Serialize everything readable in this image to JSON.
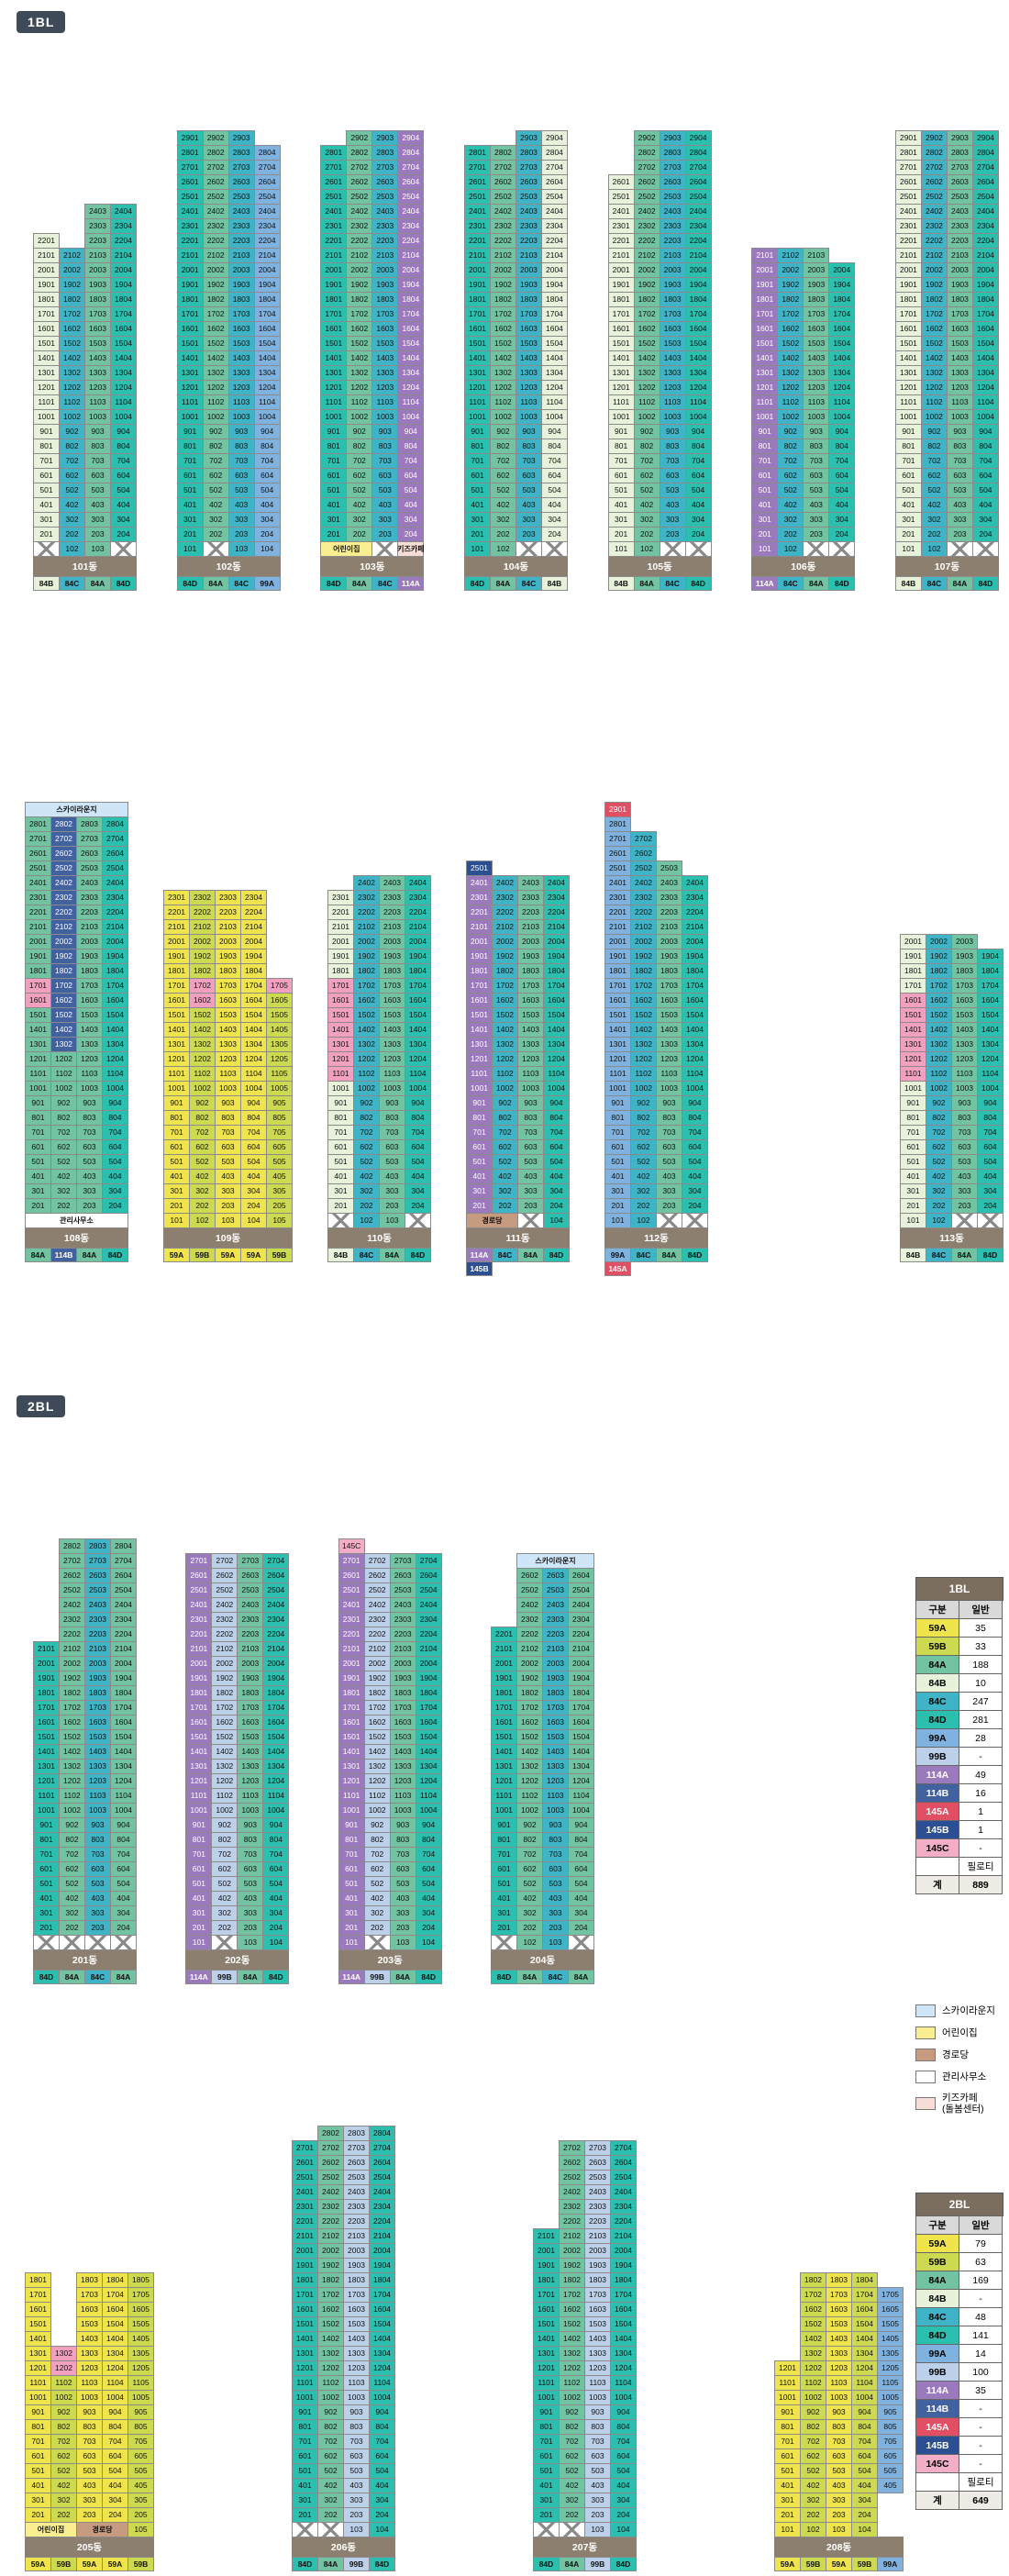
{
  "badges": {
    "bl1": "1BL",
    "bl2": "2BL"
  },
  "palette": {
    "59A": "#f0e44c",
    "59B": "#cdd94e",
    "84A": "#72c3a2",
    "84B": "#e8f1da",
    "84C": "#3fb4c6",
    "84D": "#2abfae",
    "99A": "#7fb2de",
    "99B": "#bcd0ea",
    "114A": "#9b79bd",
    "114B": "#41619f",
    "145A": "#e04f63",
    "145B": "#2c4f94",
    "145C": "#f2aec6",
    "HL": "#f2a0c0",
    "skylounge": "#cfe6f8",
    "daycare": "#f9ef90",
    "senior": "#c79b80",
    "office": "#ffffff",
    "kidscafe": "#f6ded6"
  },
  "whiteText": [
    "114A",
    "114B",
    "145A",
    "145B"
  ],
  "rows": {
    "row1": [
      "b101",
      "b102",
      "b103",
      "b104",
      "b105",
      "b106",
      "b107"
    ],
    "row2": [
      "b108",
      "b109",
      "b110",
      "b111",
      "b112",
      "b113"
    ],
    "row3": [
      "b201",
      "b202",
      "b203",
      "b204"
    ],
    "row4": [
      "b205",
      "b206",
      "b207",
      "b208"
    ]
  },
  "buildings": {
    "b101": {
      "name": "101동",
      "cols": [
        {
          "t": 22,
          "ty": "84B",
          "g": "x"
        },
        {
          "t": 21,
          "ty": "84C",
          "g": "u"
        },
        {
          "t": 24,
          "ty": "84A",
          "g": "u"
        },
        {
          "t": 24,
          "ty": "84D",
          "g": "x"
        }
      ]
    },
    "b102": {
      "name": "102동",
      "cols": [
        {
          "t": 29,
          "ty": "84D",
          "g": "u"
        },
        {
          "t": 29,
          "ty": "84A",
          "g": "x"
        },
        {
          "t": 29,
          "ty": "84C",
          "g": "u"
        },
        {
          "t": 28,
          "ty": "99A",
          "g": "u"
        }
      ]
    },
    "b103": {
      "name": "103동",
      "cols": [
        {
          "t": 28,
          "ty": "84D",
          "g": "-"
        },
        {
          "t": 29,
          "ty": "84A",
          "g": "-"
        },
        {
          "t": 29,
          "ty": "84C",
          "g": "x"
        },
        {
          "t": 29,
          "ty": "114A",
          "g": "-"
        }
      ],
      "gspans": [
        {
          "a": 1,
          "b": 2,
          "label": "어린이집",
          "fill": "daycare"
        },
        {
          "a": 4,
          "b": 4,
          "label": "키즈카페",
          "fill": "kidscafe"
        }
      ]
    },
    "b104": {
      "name": "104동",
      "cols": [
        {
          "t": 28,
          "ty": "84D",
          "g": "u"
        },
        {
          "t": 28,
          "ty": "84A",
          "g": "u"
        },
        {
          "t": 29,
          "ty": "84C",
          "g": "x"
        },
        {
          "t": 29,
          "ty": "84B",
          "g": "x"
        }
      ]
    },
    "b105": {
      "name": "105동",
      "cols": [
        {
          "t": 26,
          "ty": "84B",
          "g": "u"
        },
        {
          "t": 29,
          "ty": "84A",
          "g": "u"
        },
        {
          "t": 29,
          "ty": "84C",
          "g": "x"
        },
        {
          "t": 29,
          "ty": "84D",
          "g": "x"
        }
      ]
    },
    "b106": {
      "name": "106동",
      "cols": [
        {
          "t": 21,
          "ty": "114A",
          "g": "u"
        },
        {
          "t": 21,
          "ty": "84C",
          "g": "u"
        },
        {
          "t": 21,
          "ty": "84A",
          "g": "x"
        },
        {
          "t": 20,
          "ty": "84D",
          "g": "x"
        }
      ]
    },
    "b107": {
      "name": "107동",
      "cols": [
        {
          "t": 29,
          "ty": "84B",
          "g": "u"
        },
        {
          "t": 29,
          "ty": "84C",
          "g": "u"
        },
        {
          "t": 29,
          "ty": "84A",
          "g": "x"
        },
        {
          "t": 29,
          "ty": "84D",
          "g": "x"
        }
      ]
    },
    "b108": {
      "name": "108동",
      "header": {
        "a": 1,
        "b": 4,
        "label": "스카이라운지",
        "fill": "skylounge"
      },
      "cols": [
        {
          "t": 28,
          "ty": "84A",
          "g": "-"
        },
        {
          "t": 28,
          "ty": "114B",
          "g": "-"
        },
        {
          "t": 28,
          "ty": "84A",
          "g": "-"
        },
        {
          "t": 28,
          "ty": "84D",
          "g": "-"
        }
      ],
      "segs": {
        "2": [
          {
            "a": 2,
            "b": 12,
            "ty": "84A"
          },
          {
            "a": 13,
            "b": 28,
            "ty": "114B"
          }
        ]
      },
      "hl": {
        "1": [
          16,
          17
        ]
      },
      "gspans": [
        {
          "a": 1,
          "b": 4,
          "label": "관리사무소",
          "fill": "office"
        }
      ]
    },
    "b109": {
      "name": "109동",
      "cols": [
        {
          "t": 23,
          "ty": "59A",
          "g": "u"
        },
        {
          "t": 23,
          "ty": "59B",
          "g": "u"
        },
        {
          "t": 23,
          "ty": "59A",
          "g": "u"
        },
        {
          "t": 23,
          "ty": "59A",
          "g": "u"
        },
        {
          "t": 17,
          "ty": "59B",
          "g": "u"
        }
      ],
      "hl": {
        "2": [
          16,
          17
        ],
        "5": [
          17
        ]
      }
    },
    "b110": {
      "name": "110동",
      "cols": [
        {
          "t": 23,
          "ty": "84B",
          "g": "x"
        },
        {
          "t": 24,
          "ty": "84C",
          "g": "u"
        },
        {
          "t": 24,
          "ty": "84A",
          "g": "u"
        },
        {
          "t": 24,
          "ty": "84D",
          "g": "x"
        }
      ],
      "hl": {
        "1": [
          11,
          12,
          13,
          14,
          15,
          16,
          17
        ]
      }
    },
    "b111": {
      "name": "111동",
      "cols": [
        {
          "t": 25,
          "ty": "114A",
          "g": "-"
        },
        {
          "t": 24,
          "ty": "84C",
          "g": "-"
        },
        {
          "t": 24,
          "ty": "84A",
          "g": "x"
        },
        {
          "t": 24,
          "ty": "84D",
          "g": "u"
        }
      ],
      "cells": [
        {
          "c": 1,
          "f": 25,
          "fill": "145B"
        }
      ],
      "gspans": [
        {
          "a": 1,
          "b": 2,
          "label": "경로당",
          "fill": "senior"
        }
      ],
      "sub": [
        "145B",
        "",
        "",
        ""
      ]
    },
    "b112": {
      "name": "112동",
      "cols": [
        {
          "t": 29,
          "ty": "99A",
          "g": "u"
        },
        {
          "t": 27,
          "ty": "84C",
          "g": "u"
        },
        {
          "t": 25,
          "ty": "84A",
          "g": "x"
        },
        {
          "t": 24,
          "ty": "84D",
          "g": "x"
        }
      ],
      "cells": [
        {
          "c": 1,
          "f": 29,
          "fill": "145A"
        }
      ],
      "sub": [
        "145A",
        "",
        "",
        ""
      ]
    },
    "b113": {
      "name": "113동",
      "cols": [
        {
          "t": 20,
          "ty": "84B",
          "g": "u"
        },
        {
          "t": 20,
          "ty": "84C",
          "g": "u"
        },
        {
          "t": 20,
          "ty": "84A",
          "g": "x"
        },
        {
          "t": 19,
          "ty": "84D",
          "g": "x"
        }
      ],
      "hl": {
        "1": [
          11,
          12,
          13,
          14,
          15,
          16
        ]
      }
    },
    "b201": {
      "name": "201동",
      "cols": [
        {
          "t": 21,
          "ty": "84D",
          "g": "x"
        },
        {
          "t": 28,
          "ty": "84A",
          "g": "x"
        },
        {
          "t": 28,
          "ty": "84C",
          "g": "x"
        },
        {
          "t": 28,
          "ty": "84A",
          "g": "x"
        }
      ]
    },
    "b202": {
      "name": "202동",
      "cols": [
        {
          "t": 27,
          "ty": "114A",
          "g": "u"
        },
        {
          "t": 27,
          "ty": "99B",
          "g": "x"
        },
        {
          "t": 27,
          "ty": "84A",
          "g": "u"
        },
        {
          "t": 27,
          "ty": "84D",
          "g": "u"
        }
      ]
    },
    "b203": {
      "name": "203동",
      "cols": [
        {
          "t": 28,
          "ty": "114A",
          "g": "u"
        },
        {
          "t": 27,
          "ty": "99B",
          "g": "x"
        },
        {
          "t": 27,
          "ty": "84A",
          "g": "u"
        },
        {
          "t": 27,
          "ty": "84D",
          "g": "u"
        }
      ],
      "cells": [
        {
          "c": 1,
          "f": 28,
          "fill": "145C",
          "text": "145C"
        }
      ]
    },
    "b204": {
      "name": "204동",
      "header": {
        "a": 2,
        "b": 4,
        "label": "스카이라운지",
        "fill": "skylounge"
      },
      "cols": [
        {
          "t": 22,
          "ty": "84D",
          "g": "x"
        },
        {
          "t": 26,
          "ty": "84A",
          "g": "u"
        },
        {
          "t": 26,
          "ty": "84C",
          "g": "u"
        },
        {
          "t": 26,
          "ty": "84A",
          "g": "x"
        }
      ]
    },
    "b205": {
      "name": "205동",
      "cols": [
        {
          "t": 18,
          "ty": "59A",
          "g": "-"
        },
        {
          "t": 13,
          "ty": "59B",
          "g": "-"
        },
        {
          "t": 18,
          "ty": "59A",
          "g": "-"
        },
        {
          "t": 18,
          "ty": "59A",
          "g": "-"
        },
        {
          "t": 18,
          "ty": "59B",
          "g": "u"
        }
      ],
      "gspans": [
        {
          "a": 1,
          "b": 2,
          "label": "어린이집",
          "fill": "daycare"
        },
        {
          "a": 3,
          "b": 4,
          "label": "경로당",
          "fill": "senior"
        }
      ],
      "hl": {
        "2": [
          12,
          13
        ]
      }
    },
    "b206": {
      "name": "206동",
      "cols": [
        {
          "t": 27,
          "ty": "84D",
          "g": "x"
        },
        {
          "t": 28,
          "ty": "84A",
          "g": "x"
        },
        {
          "t": 28,
          "ty": "99B",
          "g": "u"
        },
        {
          "t": 28,
          "ty": "84D",
          "g": "u"
        }
      ]
    },
    "b207": {
      "name": "207동",
      "cols": [
        {
          "t": 21,
          "ty": "84D",
          "g": "x"
        },
        {
          "t": 27,
          "ty": "84A",
          "g": "x"
        },
        {
          "t": 27,
          "ty": "99B",
          "g": "u"
        },
        {
          "t": 27,
          "ty": "84D",
          "g": "u"
        }
      ]
    },
    "b208": {
      "name": "208동",
      "cols": [
        {
          "t": 12,
          "ty": "59A",
          "g": "u"
        },
        {
          "t": 18,
          "ty": "59B",
          "g": "u"
        },
        {
          "t": 18,
          "ty": "59A",
          "g": "u"
        },
        {
          "t": 18,
          "ty": "59B",
          "g": "u"
        },
        {
          "t": 17,
          "bo": 4,
          "ty": "99A",
          "g": "-"
        }
      ]
    }
  },
  "tableColumns": [
    "구분",
    "일반"
  ],
  "tables": [
    {
      "id": "bl1",
      "title": "1BL",
      "rows": [
        [
          "59A",
          "35"
        ],
        [
          "59B",
          "33"
        ],
        [
          "84A",
          "188"
        ],
        [
          "84B",
          "10"
        ],
        [
          "84C",
          "247"
        ],
        [
          "84D",
          "281"
        ],
        [
          "99A",
          "28"
        ],
        [
          "99B",
          "-"
        ],
        [
          "114A",
          "49"
        ],
        [
          "114B",
          "16"
        ],
        [
          "145A",
          "1"
        ],
        [
          "145B",
          "1"
        ],
        [
          "145C",
          "-"
        ],
        [
          "PILOTI",
          "필로티"
        ],
        [
          "계",
          "889"
        ]
      ]
    },
    {
      "id": "bl2",
      "title": "2BL",
      "rows": [
        [
          "59A",
          "79"
        ],
        [
          "59B",
          "63"
        ],
        [
          "84A",
          "169"
        ],
        [
          "84B",
          "-"
        ],
        [
          "84C",
          "48"
        ],
        [
          "84D",
          "141"
        ],
        [
          "99A",
          "14"
        ],
        [
          "99B",
          "100"
        ],
        [
          "114A",
          "35"
        ],
        [
          "114B",
          "-"
        ],
        [
          "145A",
          "-"
        ],
        [
          "145B",
          "-"
        ],
        [
          "145C",
          "-"
        ],
        [
          "PILOTI",
          "필로티"
        ],
        [
          "계",
          "649"
        ]
      ]
    }
  ],
  "legend": [
    {
      "label": "스카이라운지",
      "fill": "skylounge"
    },
    {
      "label": "어린이집",
      "fill": "daycare"
    },
    {
      "label": "경로당",
      "fill": "senior"
    },
    {
      "label": "관리사무소",
      "fill": "office"
    },
    {
      "label": "키즈카페\n(돌봄센터)",
      "fill": "kidscafe"
    }
  ]
}
